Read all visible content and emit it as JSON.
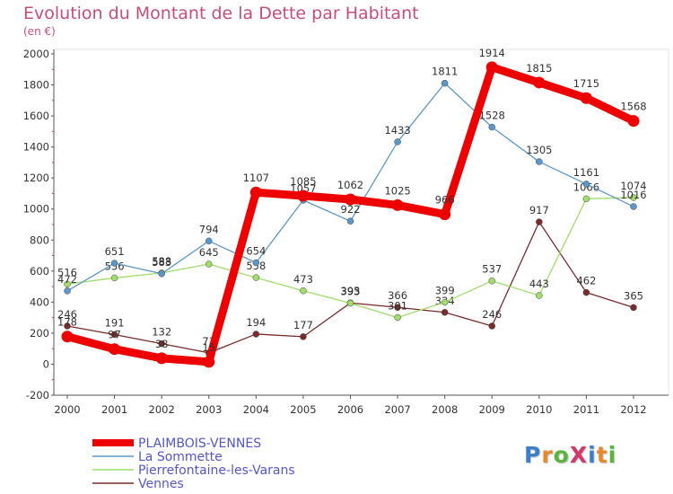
{
  "title": "Evolution du Montant de la Dette par Habitant",
  "subtitle": "(en €)",
  "logo": {
    "text": "ProXiti",
    "colors": [
      "#3a7fc8",
      "#e8882a",
      "#5bb53a",
      "#d23a6a",
      "#3a7fc8",
      "#e8882a",
      "#5bb53a"
    ]
  },
  "chart_data": {
    "type": "line",
    "x": [
      "2000",
      "2001",
      "2002",
      "2003",
      "2004",
      "2005",
      "2006",
      "2007",
      "2008",
      "2009",
      "2010",
      "2011",
      "2012"
    ],
    "ylim": [
      -200,
      2000
    ],
    "yticks": [
      -200,
      0,
      200,
      400,
      600,
      800,
      1000,
      1200,
      1400,
      1600,
      1800,
      2000
    ],
    "grid": false,
    "legend_position": "bottom-left",
    "series": [
      {
        "name": "PLAIMBOIS-VENNES",
        "color": "#ee0000",
        "values": [
          178,
          97,
          38,
          15,
          1107,
          1085,
          1062,
          1025,
          966,
          1914,
          1815,
          1715,
          1568
        ],
        "labels": [
          "178",
          "97",
          "38",
          "15",
          "1107",
          "1085",
          "1062",
          "1025",
          "966",
          "1914",
          "1815",
          "1715",
          "1568"
        ]
      },
      {
        "name": "La Sommette",
        "color": "#5b97c8",
        "values": [
          472,
          651,
          583,
          794,
          654,
          1057,
          922,
          1433,
          1811,
          1528,
          1305,
          1161,
          1016
        ],
        "labels": [
          "472",
          "651",
          "583",
          "794",
          "654",
          "1057",
          "922",
          "1433",
          "1811",
          "1528",
          "1305",
          "1161",
          "1016"
        ]
      },
      {
        "name": "Pierrefontaine-les-Varans",
        "color": "#a0dd6a",
        "values": [
          516,
          556,
          588,
          645,
          558,
          473,
          393,
          301,
          399,
          537,
          443,
          1066,
          1074
        ],
        "labels": [
          "516",
          "556",
          "588",
          "645",
          "558",
          "473",
          "393",
          "301",
          "399",
          "537",
          "443",
          "1066",
          "1074"
        ]
      },
      {
        "name": "Vennes",
        "color": "#7a2b2b",
        "values": [
          246,
          191,
          132,
          73,
          194,
          177,
          395,
          366,
          334,
          246,
          917,
          462,
          365
        ],
        "labels": [
          "246",
          "191",
          "132",
          "73",
          "194",
          "177",
          "395",
          "366",
          "334",
          "246",
          "917",
          "462",
          "365"
        ]
      }
    ]
  }
}
